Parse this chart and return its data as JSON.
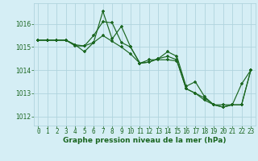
{
  "title": "Graphe pression niveau de la mer (hPa)",
  "bg_color": "#d5eef5",
  "grid_color": "#b0d4de",
  "line_color": "#1a6620",
  "xlim": [
    -0.5,
    23.5
  ],
  "ylim": [
    1011.6,
    1016.9
  ],
  "xticks": [
    0,
    1,
    2,
    3,
    4,
    5,
    6,
    7,
    8,
    9,
    10,
    11,
    12,
    13,
    14,
    15,
    16,
    17,
    18,
    19,
    20,
    21,
    22,
    23
  ],
  "yticks": [
    1012,
    1013,
    1014,
    1015,
    1016
  ],
  "line1": [
    1015.3,
    1015.3,
    1015.3,
    1015.3,
    1015.1,
    1014.8,
    1015.2,
    1016.55,
    1015.35,
    1015.9,
    1015.0,
    1014.3,
    1014.35,
    1014.5,
    1014.6,
    1014.45,
    1013.2,
    1013.0,
    1012.8,
    1012.5,
    1012.4,
    1012.5,
    1012.5,
    1014.0
  ],
  "line2": [
    1015.3,
    1015.3,
    1015.3,
    1015.3,
    1015.1,
    1015.05,
    1015.5,
    1016.1,
    1016.05,
    1015.2,
    1015.0,
    1014.3,
    1014.35,
    1014.5,
    1014.8,
    1014.6,
    1013.3,
    1013.5,
    1012.85,
    1012.5,
    1012.5,
    1012.5,
    1013.4,
    1014.0
  ],
  "line3": [
    1015.3,
    1015.3,
    1015.3,
    1015.3,
    1015.05,
    1015.05,
    1015.2,
    1015.5,
    1015.25,
    1015.0,
    1014.7,
    1014.3,
    1014.45,
    1014.45,
    1014.45,
    1014.4,
    1013.2,
    1013.0,
    1012.7,
    1012.5,
    1012.4,
    1012.5,
    1012.5,
    1014.0
  ],
  "title_fontsize": 6.5,
  "tick_fontsize": 5.5
}
